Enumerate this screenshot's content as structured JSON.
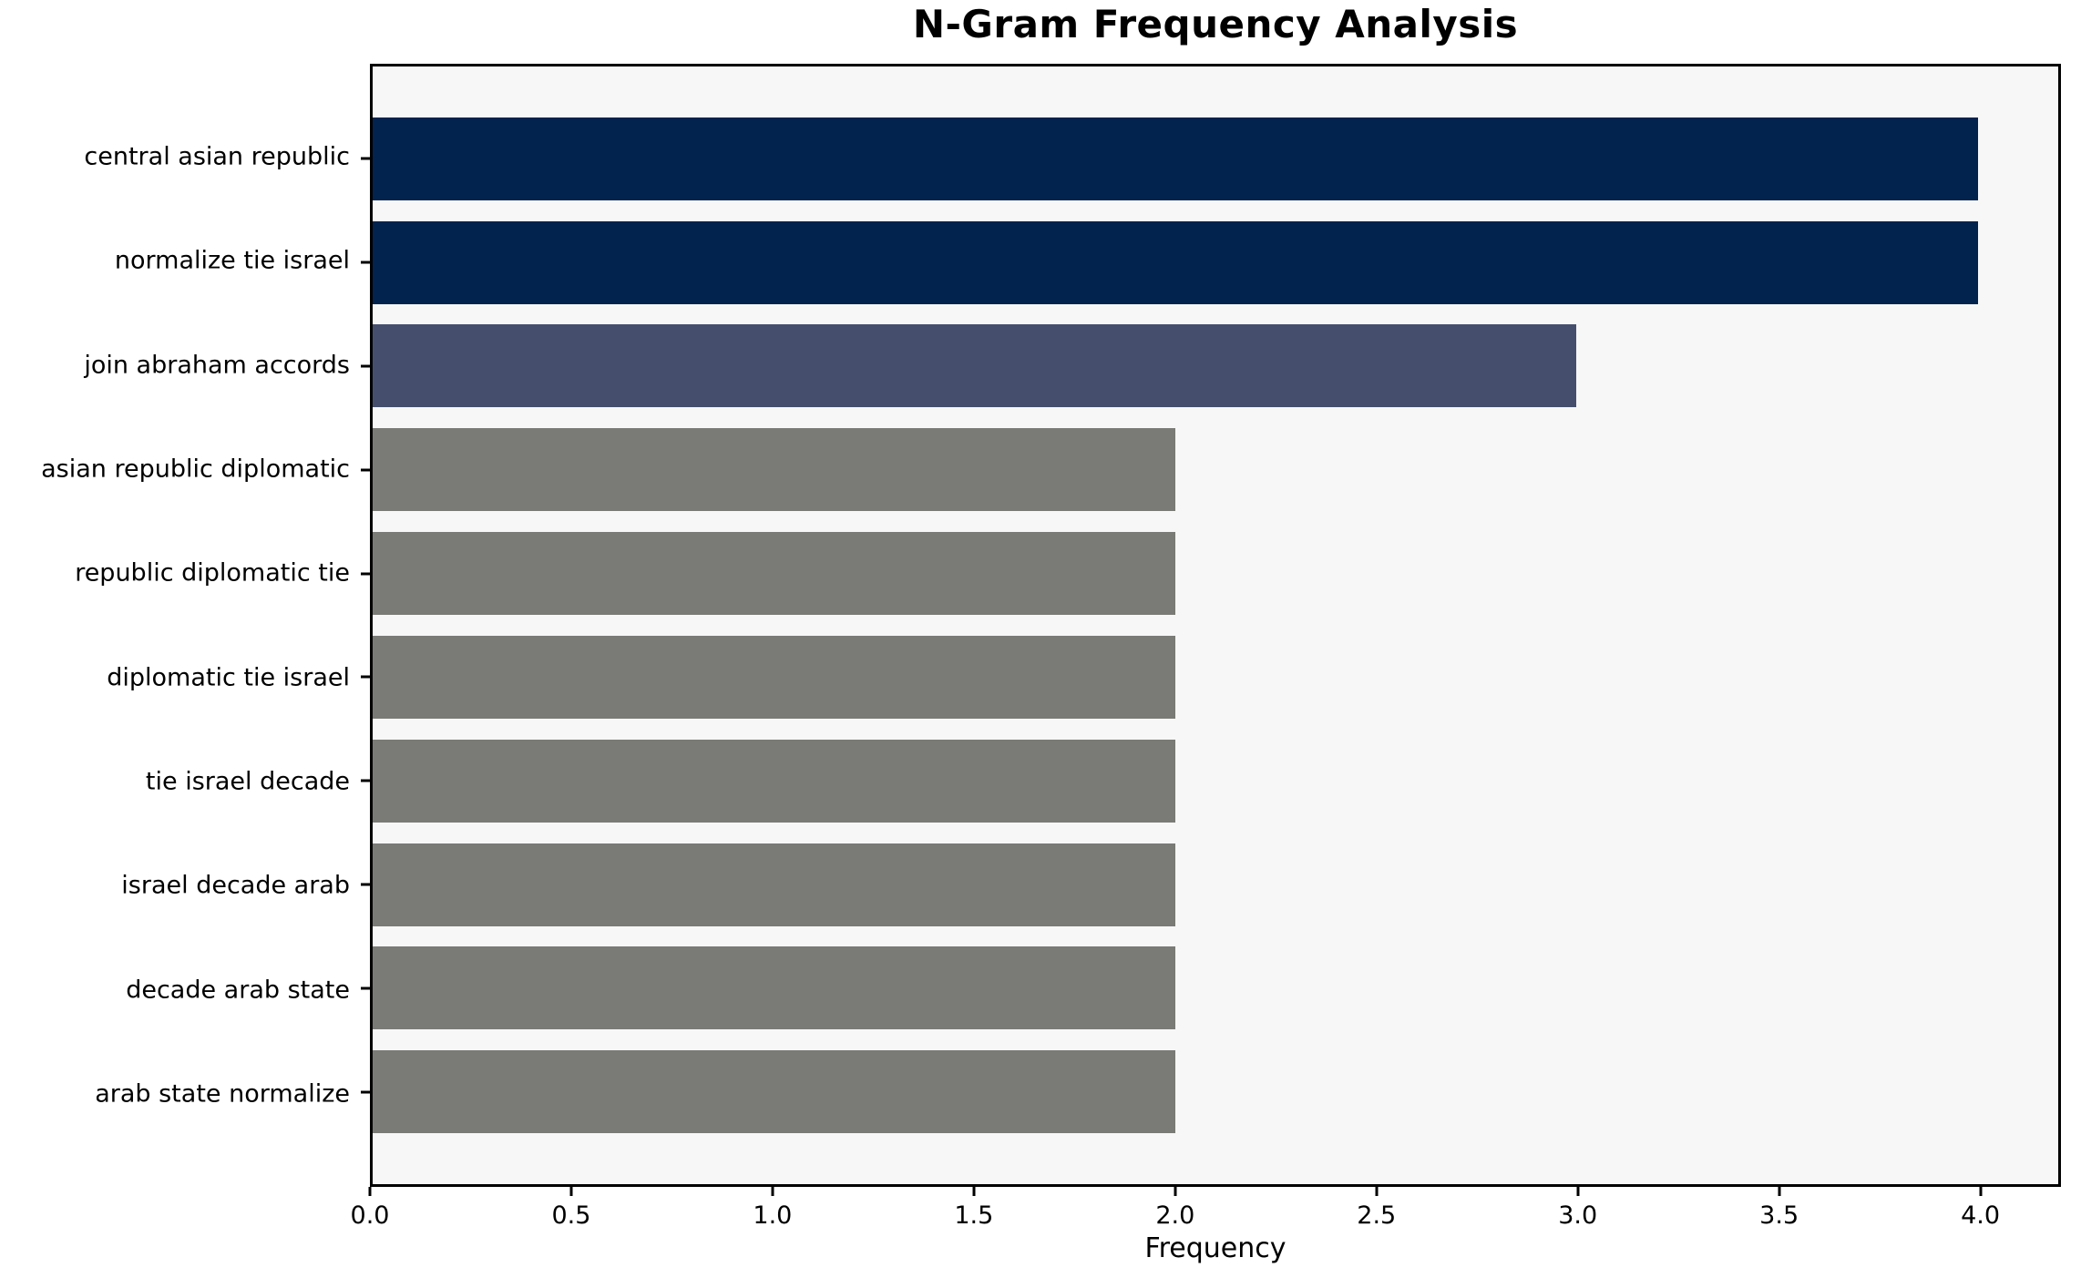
{
  "chart_data": {
    "type": "bar",
    "orientation": "horizontal",
    "title": "N-Gram Frequency Analysis",
    "xlabel": "Frequency",
    "ylabel": "",
    "categories": [
      "central asian republic",
      "normalize tie israel",
      "join abraham accords",
      "asian republic diplomatic",
      "republic diplomatic tie",
      "diplomatic tie israel",
      "tie israel decade",
      "israel decade arab",
      "decade arab state",
      "arab state normalize"
    ],
    "values": [
      4,
      4,
      3,
      2,
      2,
      2,
      2,
      2,
      2,
      2
    ],
    "bar_colors": [
      "#02234d",
      "#02234d",
      "#454f6d",
      "#7a7a76",
      "#7a7a76",
      "#7a7a76",
      "#7a7a76",
      "#7a7a76",
      "#7a7a76",
      "#7a7a76"
    ],
    "xlim": [
      0,
      4.2
    ],
    "xticks": [
      0.0,
      0.5,
      1.0,
      1.5,
      2.0,
      2.5,
      3.0,
      3.5,
      4.0
    ],
    "xtick_labels": [
      "0.0",
      "0.5",
      "1.0",
      "1.5",
      "2.0",
      "2.5",
      "3.0",
      "3.5",
      "4.0"
    ],
    "grid": false,
    "legend": null,
    "plot_background": "#f7f7f7",
    "figure_background": "#ffffff",
    "bar_height_fraction": 0.8,
    "axis_margin_fraction": 0.49
  }
}
